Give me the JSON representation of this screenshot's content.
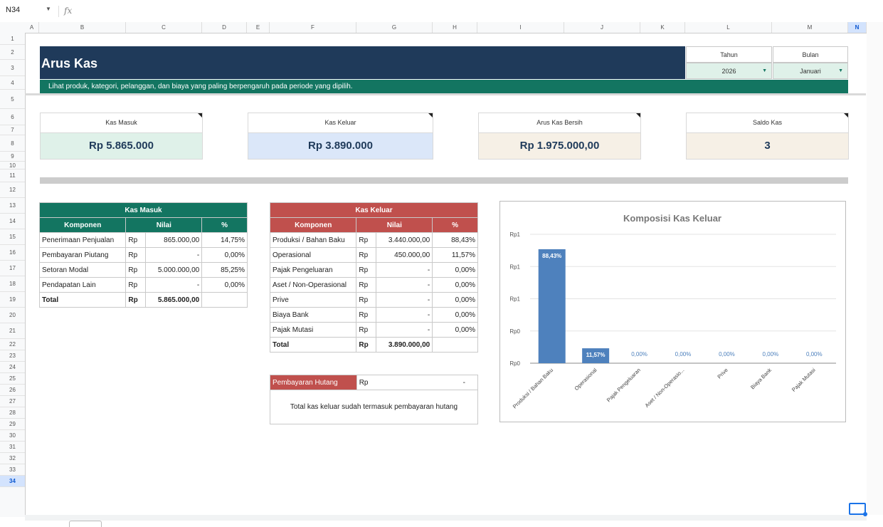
{
  "formula_bar": {
    "cell_ref": "N34",
    "fx_label": "fx"
  },
  "columns": [
    "A",
    "B",
    "C",
    "D",
    "E",
    "F",
    "G",
    "H",
    "I",
    "J",
    "K",
    "L",
    "M",
    "N"
  ],
  "selected_column": "N",
  "rows": [
    "1",
    "2",
    "3",
    "4",
    "5",
    "6",
    "7",
    "8",
    "9",
    "10",
    "11",
    "12",
    "13",
    "14",
    "15",
    "16",
    "17",
    "18",
    "19",
    "20",
    "21",
    "22",
    "23",
    "24",
    "25",
    "26",
    "27",
    "28",
    "29",
    "30",
    "31",
    "32",
    "33",
    "34"
  ],
  "selected_row": "34",
  "header": {
    "title": "Arus Kas",
    "subtitle": "Lihat produk, kategori, pelanggan, dan biaya yang paling berpengaruh pada periode yang dipilih."
  },
  "filters": {
    "year_label": "Tahun",
    "year_value": "2026",
    "month_label": "Bulan",
    "month_value": "Januari"
  },
  "kpis": [
    {
      "label": "Kas Masuk",
      "value": "Rp 5.865.000",
      "bg": "#dff1e9"
    },
    {
      "label": "Kas Keluar",
      "value": "Rp 3.890.000",
      "bg": "#dbe7f9"
    },
    {
      "label": "Arus Kas Bersih",
      "value": "Rp  1.975.000,00",
      "bg": "#f6f0e6"
    },
    {
      "label": "Saldo Kas",
      "value": "3",
      "bg": "#f6f0e6"
    }
  ],
  "kas_masuk": {
    "title": "Kas Masuk",
    "headers": [
      "Komponen",
      "Nilai",
      "%"
    ],
    "rows": [
      {
        "komponen": "Penerimaan Penjualan",
        "cur": "Rp",
        "nilai": "865.000,00",
        "pct": "14,75%"
      },
      {
        "komponen": "Pembayaran Piutang",
        "cur": "Rp",
        "nilai": "-",
        "pct": "0,00%"
      },
      {
        "komponen": "Setoran Modal",
        "cur": "Rp",
        "nilai": "5.000.000,00",
        "pct": "85,25%"
      },
      {
        "komponen": "Pendapatan Lain",
        "cur": "Rp",
        "nilai": "-",
        "pct": "0,00%"
      }
    ],
    "total": {
      "label": "Total",
      "cur": "Rp",
      "nilai": "5.865.000,00"
    }
  },
  "kas_keluar": {
    "title": "Kas Keluar",
    "headers": [
      "Komponen",
      "Nilai",
      "%"
    ],
    "rows": [
      {
        "komponen": "Produksi / Bahan Baku",
        "cur": "Rp",
        "nilai": "3.440.000,00",
        "pct": "88,43%"
      },
      {
        "komponen": "Operasional",
        "cur": "Rp",
        "nilai": "450.000,00",
        "pct": "11,57%"
      },
      {
        "komponen": "Pajak Pengeluaran",
        "cur": "Rp",
        "nilai": "-",
        "pct": "0,00%"
      },
      {
        "komponen": "Aset / Non-Operasional",
        "cur": "Rp",
        "nilai": "-",
        "pct": "0,00%"
      },
      {
        "komponen": "Prive",
        "cur": "Rp",
        "nilai": "-",
        "pct": "0,00%"
      },
      {
        "komponen": "Biaya Bank",
        "cur": "Rp",
        "nilai": "-",
        "pct": "0,00%"
      },
      {
        "komponen": "Pajak Mutasi",
        "cur": "Rp",
        "nilai": "-",
        "pct": "0,00%"
      }
    ],
    "total": {
      "label": "Total",
      "cur": "Rp",
      "nilai": "3.890.000,00"
    }
  },
  "hutang": {
    "label": "Pembayaran Hutang",
    "cur": "Rp",
    "nilai": "-",
    "note": "Total kas keluar sudah termasuk pembayaran hutang"
  },
  "chart_data": {
    "type": "bar",
    "title": "Komposisi Kas Keluar",
    "categories": [
      "Produksi / Bahan Baku",
      "Operasional",
      "Pajak Pengeluaran",
      "Aset / Non-Operasio...",
      "Prive",
      "Biaya Bank",
      "Pajak Mutasi"
    ],
    "values": [
      88.43,
      11.57,
      0,
      0,
      0,
      0,
      0
    ],
    "data_labels": [
      "88,43%",
      "11,57%",
      "0,00%",
      "0,00%",
      "0,00%",
      "0,00%",
      "0,00%"
    ],
    "y_tick_labels": [
      "Rp0",
      "Rp0",
      "Rp1",
      "Rp1",
      "Rp1"
    ],
    "ylim": [
      0,
      100
    ],
    "bar_color": "#4e81bd",
    "grid": true,
    "legend": "none"
  }
}
